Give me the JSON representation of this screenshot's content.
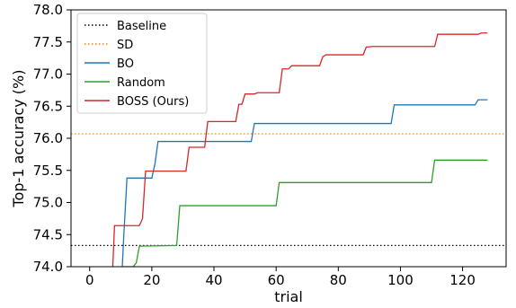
{
  "chart_data": {
    "type": "line",
    "title": "",
    "xlabel": "trial",
    "ylabel": "Top-1 accuracy (%)",
    "xlim": [
      -6,
      134
    ],
    "ylim": [
      74.0,
      78.0
    ],
    "xticks": [
      0,
      20,
      40,
      60,
      80,
      100,
      120
    ],
    "yticks": [
      74.0,
      74.5,
      75.0,
      75.5,
      76.0,
      76.5,
      77.0,
      77.5,
      78.0
    ],
    "xtick_labels": [
      "0",
      "20",
      "40",
      "60",
      "80",
      "100",
      "120"
    ],
    "ytick_labels": [
      "74.0",
      "74.5",
      "75.0",
      "75.5",
      "76.0",
      "76.5",
      "77.0",
      "77.5",
      "78.0"
    ],
    "grid": false,
    "legend_position": "top-left",
    "series": [
      {
        "name": "Baseline",
        "color": "#000000",
        "style": "dotted",
        "kind": "hline",
        "y": 74.33
      },
      {
        "name": "SD",
        "color": "#ff7f0e",
        "style": "dotted",
        "kind": "hline",
        "y": 76.07
      },
      {
        "name": "BO",
        "color": "#1f77b4",
        "style": "solid",
        "kind": "step",
        "points": [
          [
            10,
            73.5
          ],
          [
            11,
            74.5
          ],
          [
            12,
            75.38
          ],
          [
            20,
            75.38
          ],
          [
            21,
            75.6
          ],
          [
            22,
            75.95
          ],
          [
            52,
            75.95
          ],
          [
            53,
            76.23
          ],
          [
            97,
            76.23
          ],
          [
            98,
            76.52
          ],
          [
            124,
            76.52
          ],
          [
            125,
            76.6
          ],
          [
            128,
            76.6
          ]
        ]
      },
      {
        "name": "Random",
        "color": "#2ca02c",
        "style": "solid",
        "kind": "step",
        "points": [
          [
            10,
            73.5
          ],
          [
            11,
            74.0
          ],
          [
            14,
            74.0
          ],
          [
            15,
            74.06
          ],
          [
            16,
            74.32
          ],
          [
            28,
            74.33
          ],
          [
            29,
            74.95
          ],
          [
            60,
            74.95
          ],
          [
            61,
            75.31
          ],
          [
            110,
            75.31
          ],
          [
            111,
            75.66
          ],
          [
            128,
            75.66
          ]
        ]
      },
      {
        "name": "BOSS (Ours)",
        "color": "#d62728",
        "style": "solid",
        "kind": "step",
        "points": [
          [
            7,
            73.5
          ],
          [
            8,
            74.64
          ],
          [
            16,
            74.64
          ],
          [
            17,
            74.75
          ],
          [
            18,
            75.49
          ],
          [
            31,
            75.49
          ],
          [
            32,
            75.86
          ],
          [
            37,
            75.86
          ],
          [
            38,
            76.26
          ],
          [
            47,
            76.26
          ],
          [
            48,
            76.53
          ],
          [
            49,
            76.53
          ],
          [
            50,
            76.69
          ],
          [
            53,
            76.69
          ],
          [
            54,
            76.71
          ],
          [
            61,
            76.71
          ],
          [
            62,
            77.08
          ],
          [
            64,
            77.08
          ],
          [
            65,
            77.13
          ],
          [
            74,
            77.13
          ],
          [
            75,
            77.27
          ],
          [
            76,
            77.3
          ],
          [
            88,
            77.3
          ],
          [
            89,
            77.42
          ],
          [
            91,
            77.43
          ],
          [
            111,
            77.43
          ],
          [
            112,
            77.62
          ],
          [
            125,
            77.62
          ],
          [
            126,
            77.64
          ],
          [
            128,
            77.64
          ]
        ]
      }
    ]
  }
}
